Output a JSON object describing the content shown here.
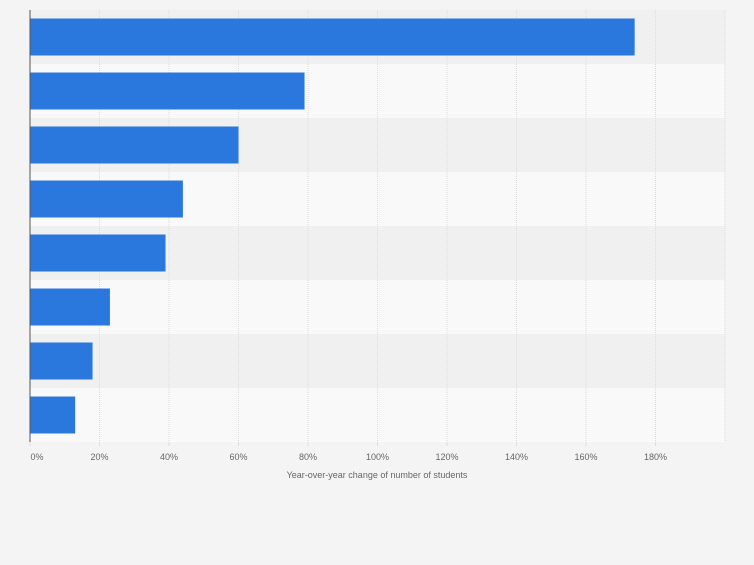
{
  "chart_data": {
    "type": "bar",
    "orientation": "horizontal",
    "categories": [
      "",
      "",
      "",
      "",
      "",
      "",
      "",
      ""
    ],
    "values": [
      174,
      79,
      60,
      44,
      39,
      23,
      18,
      13
    ],
    "xlabel": "Year-over-year change of number of students",
    "xlim": [
      0,
      200
    ],
    "x_ticks": [
      0,
      20,
      40,
      60,
      80,
      100,
      120,
      140,
      160,
      180
    ],
    "x_tick_labels": [
      "0%",
      "20%",
      "40%",
      "60%",
      "80%",
      "100%",
      "120%",
      "140%",
      "160%",
      "180%"
    ],
    "grid": true,
    "legend": "none",
    "colors": {
      "bar": "#2a78de",
      "band_dark": "#f0f0f0",
      "band_light": "#f9f9f9",
      "grid": "#dcdcdc",
      "axis": "#555555",
      "tick_text": "#666666"
    }
  }
}
